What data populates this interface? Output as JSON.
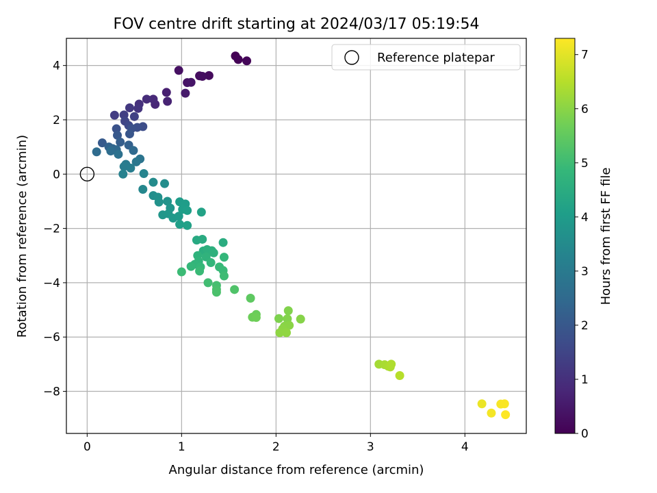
{
  "chart_data": {
    "type": "scatter",
    "title": "FOV centre drift starting at 2024/03/17 05:19:54",
    "xlabel": "Angular distance from reference (arcmin)",
    "ylabel": "Rotation from reference (arcmin)",
    "xlim": [
      -0.22,
      4.65
    ],
    "ylim": [
      -9.55,
      5.0
    ],
    "xticks": [
      0,
      1,
      2,
      3,
      4
    ],
    "yticks": [
      -8,
      -6,
      -4,
      -2,
      0,
      2,
      4
    ],
    "xtick_labels": [
      "0",
      "1",
      "2",
      "3",
      "4"
    ],
    "ytick_labels": [
      "−8",
      "−6",
      "−4",
      "−2",
      "0",
      "2",
      "4"
    ],
    "grid": true,
    "colormap": "viridis",
    "legend": {
      "position": "top-right",
      "entries": [
        "Reference platepar"
      ]
    },
    "reference_point": {
      "x": 0,
      "y": 0,
      "label": "Reference platepar"
    },
    "colorbar": {
      "label": "Hours from first FF file",
      "range": [
        0,
        7.3
      ],
      "ticks": [
        0,
        1,
        2,
        3,
        4,
        5,
        6,
        7
      ],
      "tick_labels": [
        "0",
        "1",
        "2",
        "3",
        "4",
        "5",
        "6",
        "7"
      ]
    },
    "points": [
      {
        "x": 1.57,
        "y": 4.35,
        "t": 0.0
      },
      {
        "x": 1.6,
        "y": 4.22,
        "t": 0.05
      },
      {
        "x": 1.69,
        "y": 4.17,
        "t": 0.1
      },
      {
        "x": 1.29,
        "y": 3.63,
        "t": 0.2
      },
      {
        "x": 1.19,
        "y": 3.62,
        "t": 0.25
      },
      {
        "x": 1.22,
        "y": 3.6,
        "t": 0.28
      },
      {
        "x": 0.97,
        "y": 3.82,
        "t": 0.32
      },
      {
        "x": 1.06,
        "y": 3.37,
        "t": 0.38
      },
      {
        "x": 1.1,
        "y": 3.38,
        "t": 0.42
      },
      {
        "x": 1.04,
        "y": 2.98,
        "t": 0.55
      },
      {
        "x": 0.84,
        "y": 3.01,
        "t": 0.62
      },
      {
        "x": 0.85,
        "y": 2.68,
        "t": 0.7
      },
      {
        "x": 0.72,
        "y": 2.57,
        "t": 0.78
      },
      {
        "x": 0.7,
        "y": 2.76,
        "t": 0.85
      },
      {
        "x": 0.63,
        "y": 2.76,
        "t": 0.92
      },
      {
        "x": 0.55,
        "y": 2.58,
        "t": 1.0
      },
      {
        "x": 0.54,
        "y": 2.42,
        "t": 1.1
      },
      {
        "x": 0.45,
        "y": 2.44,
        "t": 1.2
      },
      {
        "x": 0.29,
        "y": 2.17,
        "t": 1.3
      },
      {
        "x": 0.39,
        "y": 2.18,
        "t": 1.35
      },
      {
        "x": 0.5,
        "y": 2.12,
        "t": 1.4
      },
      {
        "x": 0.4,
        "y": 1.95,
        "t": 1.5
      },
      {
        "x": 0.44,
        "y": 1.79,
        "t": 1.6
      },
      {
        "x": 0.59,
        "y": 1.75,
        "t": 1.7
      },
      {
        "x": 0.53,
        "y": 1.72,
        "t": 1.75
      },
      {
        "x": 0.47,
        "y": 1.68,
        "t": 1.8
      },
      {
        "x": 0.31,
        "y": 1.67,
        "t": 1.85
      },
      {
        "x": 0.45,
        "y": 1.48,
        "t": 1.95
      },
      {
        "x": 0.32,
        "y": 1.43,
        "t": 2.0
      },
      {
        "x": 0.16,
        "y": 1.15,
        "t": 2.05
      },
      {
        "x": 0.35,
        "y": 1.18,
        "t": 2.15
      },
      {
        "x": 0.44,
        "y": 1.07,
        "t": 2.25
      },
      {
        "x": 0.23,
        "y": 1.0,
        "t": 2.3
      },
      {
        "x": 0.27,
        "y": 0.94,
        "t": 2.4
      },
      {
        "x": 0.31,
        "y": 0.9,
        "t": 2.45
      },
      {
        "x": 0.49,
        "y": 0.87,
        "t": 2.5
      },
      {
        "x": 0.1,
        "y": 0.82,
        "t": 2.55
      },
      {
        "x": 0.25,
        "y": 0.85,
        "t": 2.6
      },
      {
        "x": 0.33,
        "y": 0.73,
        "t": 2.7
      },
      {
        "x": 0.56,
        "y": 0.56,
        "t": 2.8
      },
      {
        "x": 0.52,
        "y": 0.45,
        "t": 2.9
      },
      {
        "x": 0.41,
        "y": 0.36,
        "t": 3.0
      },
      {
        "x": 0.39,
        "y": 0.28,
        "t": 3.05
      },
      {
        "x": 0.46,
        "y": 0.22,
        "t": 3.1
      },
      {
        "x": 0.38,
        "y": 0.0,
        "t": 3.2
      },
      {
        "x": 0.6,
        "y": 0.02,
        "t": 3.3
      },
      {
        "x": 0.59,
        "y": -0.56,
        "t": 3.4
      },
      {
        "x": 0.7,
        "y": -0.3,
        "t": 3.5
      },
      {
        "x": 0.82,
        "y": -0.35,
        "t": 3.55
      },
      {
        "x": 0.7,
        "y": -0.79,
        "t": 3.6
      },
      {
        "x": 0.75,
        "y": -0.85,
        "t": 3.65
      },
      {
        "x": 0.76,
        "y": -1.03,
        "t": 3.7
      },
      {
        "x": 0.85,
        "y": -1.0,
        "t": 3.75
      },
      {
        "x": 0.88,
        "y": -1.25,
        "t": 3.8
      },
      {
        "x": 0.8,
        "y": -1.5,
        "t": 3.82
      },
      {
        "x": 0.86,
        "y": -1.46,
        "t": 3.85
      },
      {
        "x": 0.91,
        "y": -1.62,
        "t": 3.9
      },
      {
        "x": 0.97,
        "y": -1.55,
        "t": 3.95
      },
      {
        "x": 0.98,
        "y": -1.02,
        "t": 4.0
      },
      {
        "x": 1.04,
        "y": -1.1,
        "t": 4.02
      },
      {
        "x": 1.01,
        "y": -1.3,
        "t": 4.05
      },
      {
        "x": 1.06,
        "y": -1.34,
        "t": 4.08
      },
      {
        "x": 0.98,
        "y": -1.85,
        "t": 4.1
      },
      {
        "x": 1.06,
        "y": -1.89,
        "t": 4.15
      },
      {
        "x": 1.21,
        "y": -1.4,
        "t": 4.2
      },
      {
        "x": 1.16,
        "y": -2.43,
        "t": 4.4
      },
      {
        "x": 1.22,
        "y": -2.4,
        "t": 4.45
      },
      {
        "x": 1.44,
        "y": -2.52,
        "t": 4.5
      },
      {
        "x": 1.23,
        "y": -2.83,
        "t": 4.55
      },
      {
        "x": 1.27,
        "y": -2.78,
        "t": 4.6
      },
      {
        "x": 1.32,
        "y": -2.82,
        "t": 4.62
      },
      {
        "x": 1.34,
        "y": -2.9,
        "t": 4.65
      },
      {
        "x": 1.17,
        "y": -3.0,
        "t": 4.7
      },
      {
        "x": 1.26,
        "y": -3.05,
        "t": 4.72
      },
      {
        "x": 1.18,
        "y": -3.21,
        "t": 4.75
      },
      {
        "x": 1.14,
        "y": -3.32,
        "t": 4.78
      },
      {
        "x": 1.31,
        "y": -3.26,
        "t": 4.8
      },
      {
        "x": 1.45,
        "y": -3.06,
        "t": 4.82
      },
      {
        "x": 1.1,
        "y": -3.4,
        "t": 4.85
      },
      {
        "x": 1.2,
        "y": -3.42,
        "t": 4.87
      },
      {
        "x": 1.4,
        "y": -3.42,
        "t": 4.9
      },
      {
        "x": 1.44,
        "y": -3.55,
        "t": 4.92
      },
      {
        "x": 1.19,
        "y": -3.57,
        "t": 4.94
      },
      {
        "x": 1.0,
        "y": -3.6,
        "t": 4.96
      },
      {
        "x": 1.45,
        "y": -3.75,
        "t": 5.0
      },
      {
        "x": 1.28,
        "y": -4.0,
        "t": 5.05
      },
      {
        "x": 1.37,
        "y": -4.1,
        "t": 5.1
      },
      {
        "x": 1.37,
        "y": -4.25,
        "t": 5.15
      },
      {
        "x": 1.37,
        "y": -4.35,
        "t": 5.18
      },
      {
        "x": 1.56,
        "y": -4.25,
        "t": 5.25
      },
      {
        "x": 1.73,
        "y": -4.57,
        "t": 5.45
      },
      {
        "x": 1.79,
        "y": -5.17,
        "t": 5.6
      },
      {
        "x": 1.75,
        "y": -5.27,
        "t": 5.65
      },
      {
        "x": 1.79,
        "y": -5.28,
        "t": 5.68
      },
      {
        "x": 2.03,
        "y": -5.32,
        "t": 5.85
      },
      {
        "x": 2.13,
        "y": -5.03,
        "t": 5.9
      },
      {
        "x": 2.12,
        "y": -5.33,
        "t": 5.92
      },
      {
        "x": 2.26,
        "y": -5.34,
        "t": 5.95
      },
      {
        "x": 2.09,
        "y": -5.6,
        "t": 5.97
      },
      {
        "x": 2.14,
        "y": -5.57,
        "t": 6.0
      },
      {
        "x": 2.07,
        "y": -5.7,
        "t": 6.02
      },
      {
        "x": 2.04,
        "y": -5.84,
        "t": 6.05
      },
      {
        "x": 2.11,
        "y": -5.84,
        "t": 6.07
      },
      {
        "x": 3.09,
        "y": -7.0,
        "t": 6.3
      },
      {
        "x": 3.15,
        "y": -7.02,
        "t": 6.35
      },
      {
        "x": 3.19,
        "y": -7.08,
        "t": 6.38
      },
      {
        "x": 3.21,
        "y": -7.1,
        "t": 6.4
      },
      {
        "x": 3.22,
        "y": -7.0,
        "t": 6.42
      },
      {
        "x": 3.31,
        "y": -7.42,
        "t": 6.5
      },
      {
        "x": 4.18,
        "y": -8.46,
        "t": 7.1
      },
      {
        "x": 4.28,
        "y": -8.8,
        "t": 7.2
      },
      {
        "x": 4.38,
        "y": -8.47,
        "t": 7.22
      },
      {
        "x": 4.42,
        "y": -8.46,
        "t": 7.25
      },
      {
        "x": 4.43,
        "y": -8.86,
        "t": 7.3
      }
    ]
  }
}
